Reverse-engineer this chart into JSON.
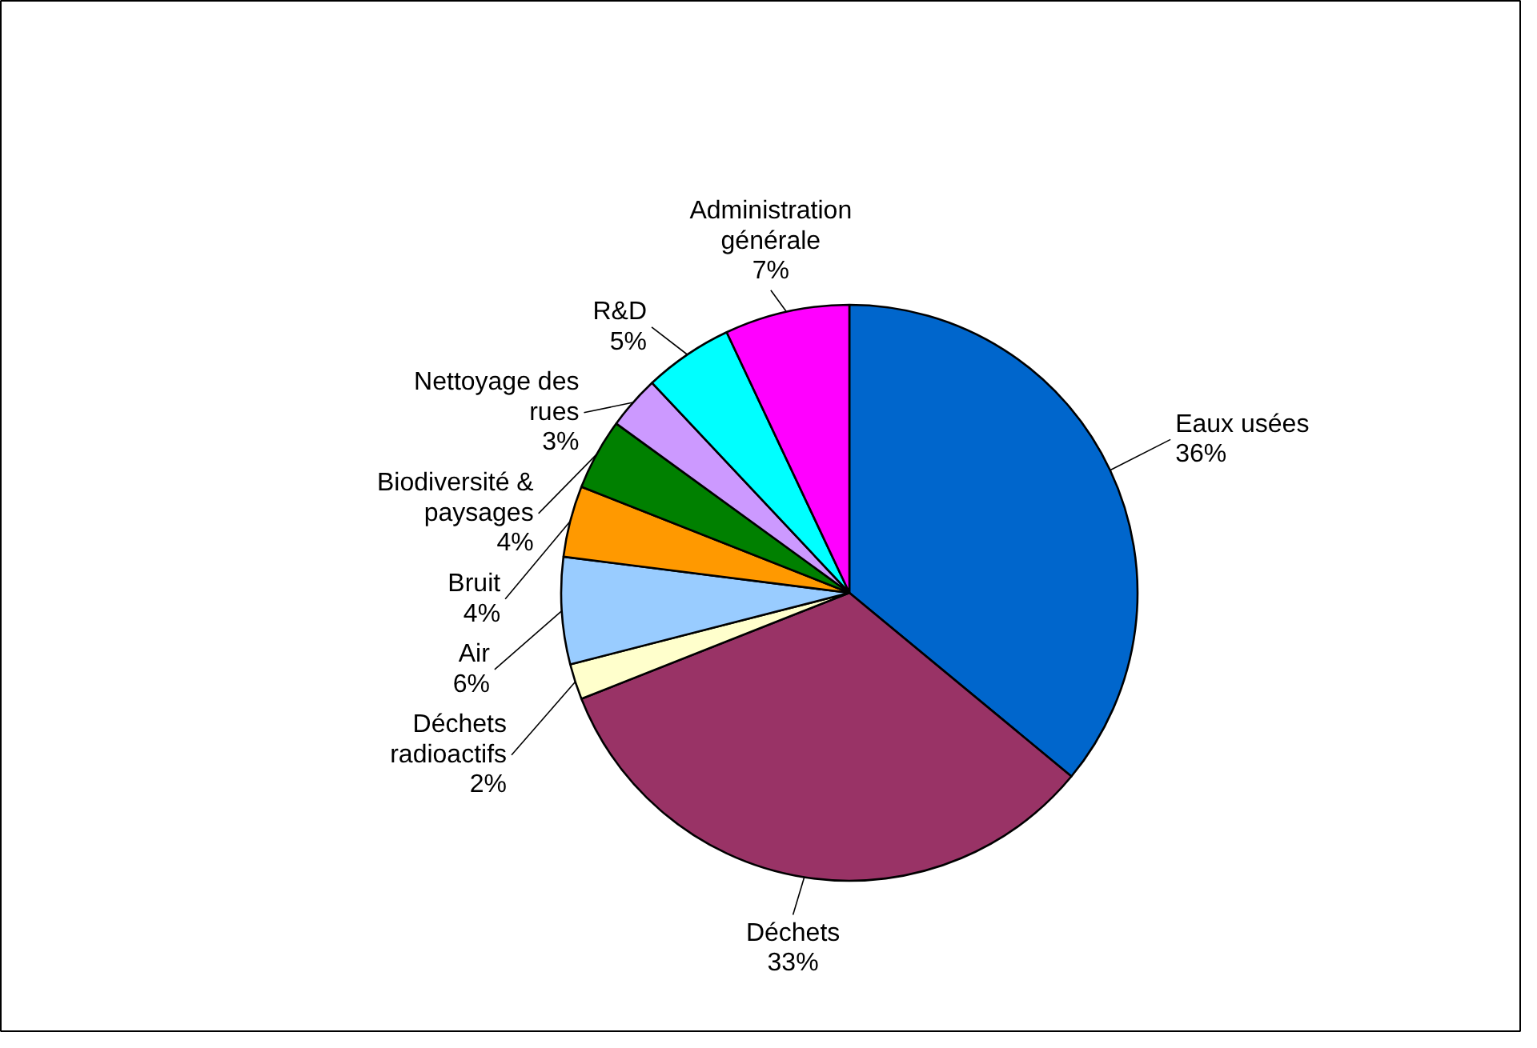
{
  "chart_data": {
    "type": "pie",
    "categories": [
      "Eaux usées",
      "Déchets",
      "Déchets\nradioactifs",
      "Air",
      "Bruit",
      "Biodiversité &\npaysages",
      "Nettoyage des\nrues",
      "R&D",
      "Administration\ngénérale"
    ],
    "values": [
      36,
      33,
      2,
      6,
      4,
      4,
      3,
      5,
      7
    ],
    "value_labels": [
      "36%",
      "33%",
      "2%",
      "6%",
      "4%",
      "4%",
      "3%",
      "5%",
      "7%"
    ],
    "colors": [
      "#0066cc",
      "#993366",
      "#ffffcc",
      "#99ccff",
      "#ff9900",
      "#008000",
      "#cc99ff",
      "#00ffff",
      "#ff00ff"
    ]
  }
}
